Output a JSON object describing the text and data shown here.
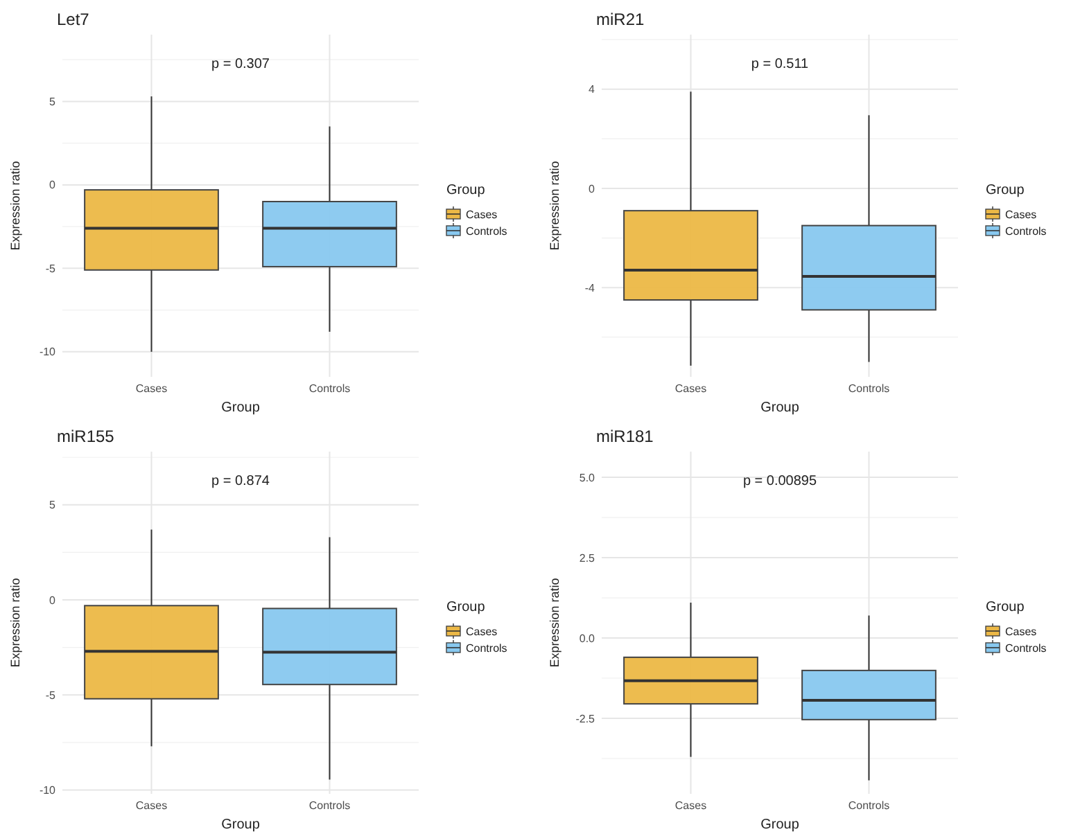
{
  "chart_data": [
    {
      "type": "box",
      "title": "Let7",
      "xlabel": "Group",
      "ylabel": "Expression ratio",
      "legend_title": "Group",
      "legend": "right",
      "grid": true,
      "categories": [
        "Cases",
        "Controls"
      ],
      "ylim": [
        -11.5,
        9
      ],
      "yticks": [
        -10,
        -5,
        0,
        5
      ],
      "annotations": [
        "p = 0.307"
      ],
      "series": [
        {
          "name": "Cases",
          "color": "#ecb846",
          "boxes": [
            {
              "low": -10,
              "q1": -5.1,
              "median": -2.6,
              "q3": -0.3,
              "high": 5.3
            },
            null
          ]
        },
        {
          "name": "Controls",
          "color": "#88c8ef",
          "boxes": [
            null,
            {
              "low": -8.8,
              "q1": -4.9,
              "median": -2.6,
              "q3": -1,
              "high": 3.5
            }
          ]
        }
      ]
    },
    {
      "type": "box",
      "title": "miR21",
      "xlabel": "Group",
      "ylabel": "Expression ratio",
      "legend_title": "Group",
      "legend": "right",
      "grid": true,
      "categories": [
        "Cases",
        "Controls"
      ],
      "ylim": [
        -7.6,
        6.2
      ],
      "yticks": [
        -4,
        0,
        4
      ],
      "annotations": [
        "p = 0.511"
      ],
      "series": [
        {
          "name": "Cases",
          "color": "#ecb846",
          "boxes": [
            {
              "low": -7.15,
              "q1": -4.5,
              "median": -3.3,
              "q3": -0.9,
              "high": 3.9
            },
            null
          ]
        },
        {
          "name": "Controls",
          "color": "#88c8ef",
          "boxes": [
            null,
            {
              "low": -7,
              "q1": -4.9,
              "median": -3.55,
              "q3": -1.5,
              "high": 2.95
            }
          ]
        }
      ]
    },
    {
      "type": "box",
      "title": "miR155",
      "xlabel": "Group",
      "ylabel": "Expression ratio",
      "legend_title": "Group",
      "legend": "right",
      "grid": true,
      "categories": [
        "Cases",
        "Controls"
      ],
      "ylim": [
        -10.2,
        7.8
      ],
      "yticks": [
        -10,
        -5,
        0,
        5
      ],
      "annotations": [
        "p = 0.874"
      ],
      "series": [
        {
          "name": "Cases",
          "color": "#ecb846",
          "boxes": [
            {
              "low": -7.7,
              "q1": -5.2,
              "median": -2.7,
              "q3": -0.3,
              "high": 3.7
            },
            null
          ]
        },
        {
          "name": "Controls",
          "color": "#88c8ef",
          "boxes": [
            null,
            {
              "low": -9.45,
              "q1": -4.45,
              "median": -2.75,
              "q3": -0.45,
              "high": 3.3
            }
          ]
        }
      ]
    },
    {
      "type": "box",
      "title": "miR181",
      "xlabel": "Group",
      "ylabel": "Expression ratio",
      "legend_title": "Group",
      "legend": "right",
      "grid": true,
      "categories": [
        "Cases",
        "Controls"
      ],
      "ylim": [
        -4.85,
        5.8
      ],
      "yticks": [
        {
          "value": -2.5,
          "label": "-2.5"
        },
        {
          "value": 0,
          "label": "0.0"
        },
        {
          "value": 2.5,
          "label": "2.5"
        },
        {
          "value": 5,
          "label": "5.0"
        }
      ],
      "annotations": [
        "p = 0.00895"
      ],
      "series": [
        {
          "name": "Cases",
          "color": "#ecb846",
          "boxes": [
            {
              "low": -3.7,
              "q1": -2.05,
              "median": -1.33,
              "q3": -0.6,
              "high": 1.1
            },
            null
          ]
        },
        {
          "name": "Controls",
          "color": "#88c8ef",
          "boxes": [
            null,
            {
              "low": -4.43,
              "q1": -2.54,
              "median": -1.94,
              "q3": -1.01,
              "high": 0.7
            }
          ]
        }
      ]
    }
  ]
}
